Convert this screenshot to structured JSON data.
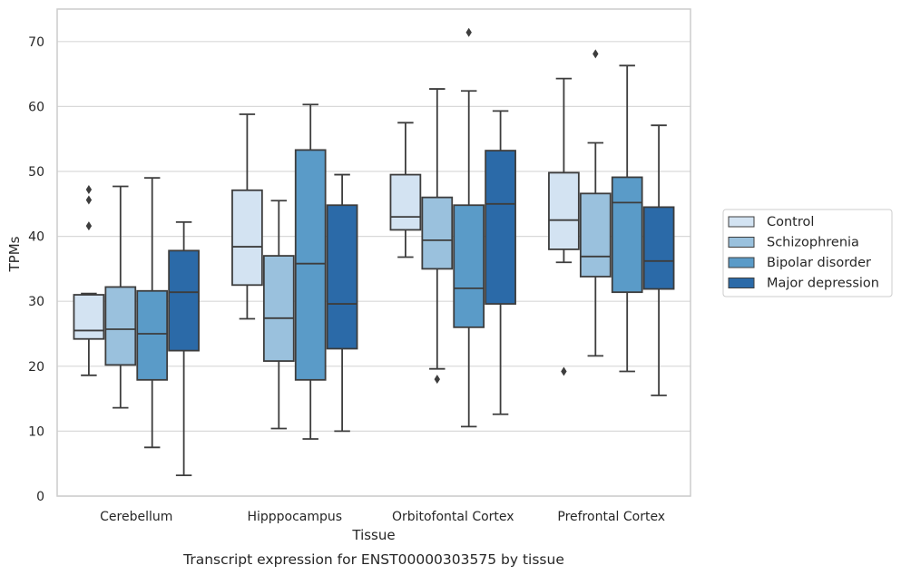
{
  "chart_data": {
    "type": "boxplot",
    "title": "",
    "caption": "Transcript expression for ENST00000303575 by tissue",
    "xlabel": "Tissue",
    "ylabel": "TPMs",
    "ylim": [
      0,
      75
    ],
    "yticks": [
      0,
      10,
      20,
      30,
      40,
      50,
      60,
      70
    ],
    "grid": "horizontal",
    "legend_position": "right",
    "categories": [
      "Cerebellum",
      "Hipppocampus",
      "Orbitofontal Cortex",
      "Prefrontal Cortex"
    ],
    "series": [
      {
        "name": "Control",
        "color": "#d3e3f2",
        "boxes": [
          {
            "whislo": 18.6,
            "q1": 24.2,
            "med": 25.5,
            "q3": 31.0,
            "whishi": 31.2,
            "fliers": [
              41.6,
              45.6,
              47.2
            ]
          },
          {
            "whislo": 27.3,
            "q1": 32.5,
            "med": 38.4,
            "q3": 47.1,
            "whishi": 58.8,
            "fliers": []
          },
          {
            "whislo": 36.8,
            "q1": 41.0,
            "med": 43.0,
            "q3": 49.5,
            "whishi": 57.5,
            "fliers": []
          },
          {
            "whislo": 36.0,
            "q1": 38.0,
            "med": 42.5,
            "q3": 49.8,
            "whishi": 64.3,
            "fliers": [
              19.2
            ]
          }
        ]
      },
      {
        "name": "Schizophrenia",
        "color": "#9ac1dd",
        "boxes": [
          {
            "whislo": 13.6,
            "q1": 20.2,
            "med": 25.7,
            "q3": 32.2,
            "whishi": 47.7,
            "fliers": []
          },
          {
            "whislo": 10.4,
            "q1": 20.8,
            "med": 27.4,
            "q3": 37.0,
            "whishi": 45.5,
            "fliers": []
          },
          {
            "whislo": 19.6,
            "q1": 35.0,
            "med": 39.4,
            "q3": 46.0,
            "whishi": 62.7,
            "fliers": [
              18.0
            ]
          },
          {
            "whislo": 21.6,
            "q1": 33.8,
            "med": 36.9,
            "q3": 46.6,
            "whishi": 54.4,
            "fliers": [
              68.1
            ]
          }
        ]
      },
      {
        "name": "Bipolar disorder",
        "color": "#5a9bc8",
        "boxes": [
          {
            "whislo": 7.5,
            "q1": 17.9,
            "med": 25.0,
            "q3": 31.6,
            "whishi": 49.0,
            "fliers": []
          },
          {
            "whislo": 8.8,
            "q1": 17.9,
            "med": 35.8,
            "q3": 53.3,
            "whishi": 60.3,
            "fliers": []
          },
          {
            "whislo": 10.7,
            "q1": 26.0,
            "med": 32.0,
            "q3": 44.8,
            "whishi": 62.4,
            "fliers": [
              71.4
            ]
          },
          {
            "whislo": 19.2,
            "q1": 31.4,
            "med": 45.2,
            "q3": 49.1,
            "whishi": 66.3,
            "fliers": []
          }
        ]
      },
      {
        "name": "Major depression",
        "color": "#2b6aa8",
        "boxes": [
          {
            "whislo": 3.2,
            "q1": 22.4,
            "med": 31.4,
            "q3": 37.8,
            "whishi": 42.2,
            "fliers": []
          },
          {
            "whislo": 10.0,
            "q1": 22.7,
            "med": 29.6,
            "q3": 44.8,
            "whishi": 49.5,
            "fliers": []
          },
          {
            "whislo": 12.6,
            "q1": 29.6,
            "med": 45.0,
            "q3": 53.2,
            "whishi": 59.3,
            "fliers": []
          },
          {
            "whislo": 15.5,
            "q1": 31.9,
            "med": 36.2,
            "q3": 44.5,
            "whishi": 57.1,
            "fliers": []
          }
        ]
      }
    ]
  }
}
